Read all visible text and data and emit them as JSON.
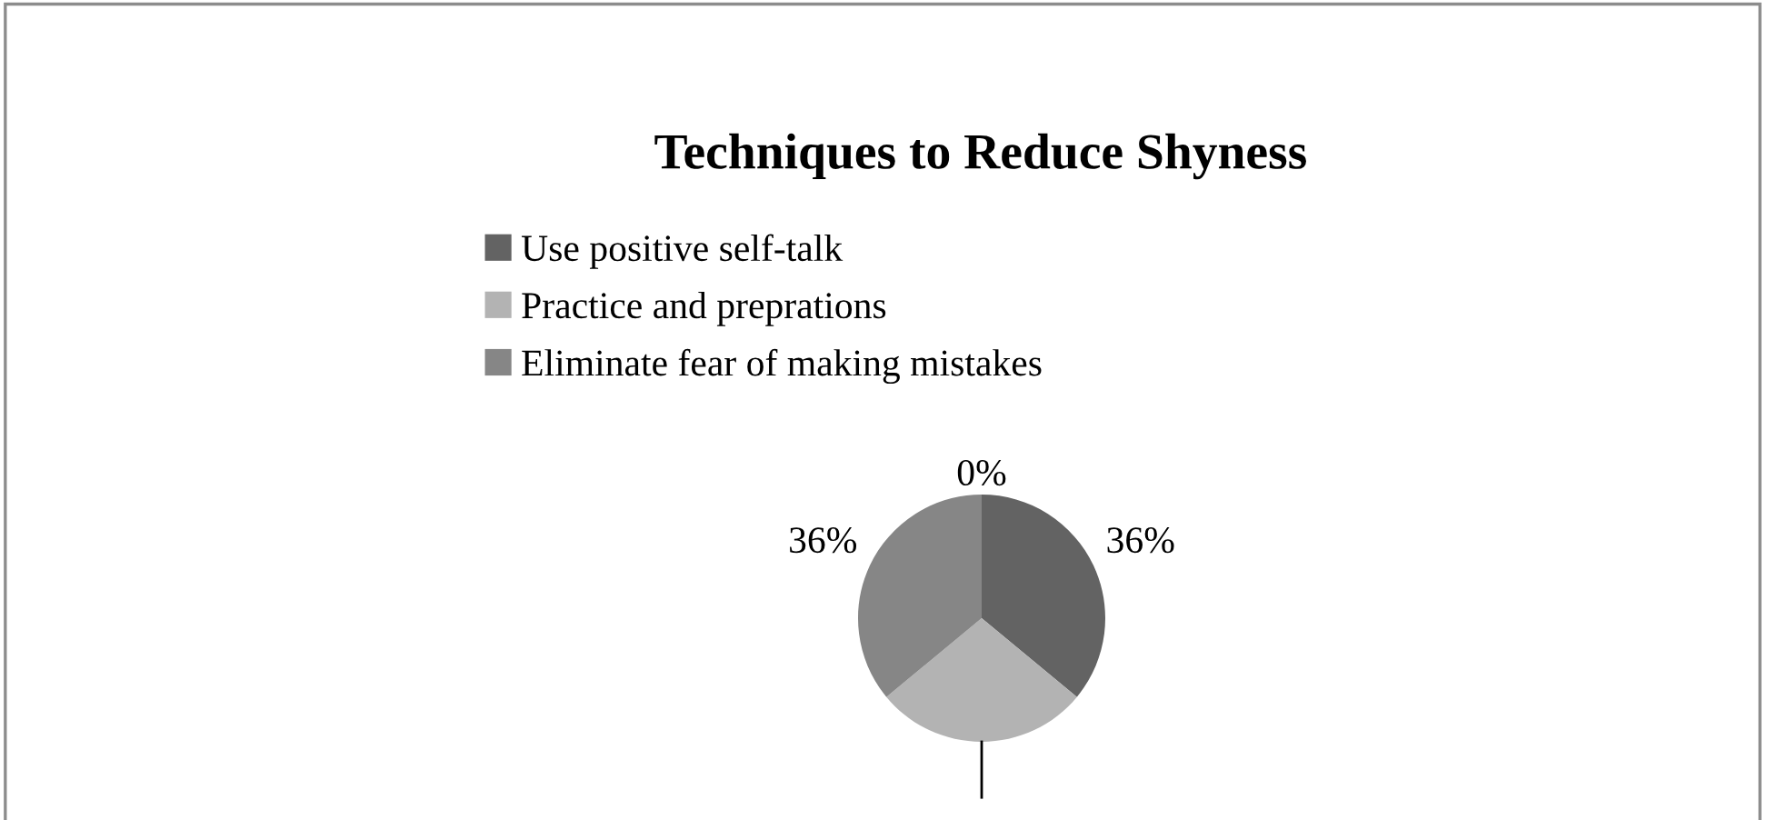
{
  "chart_data": {
    "type": "pie",
    "title": "Techniques to Reduce Shyness",
    "categories": [
      "Use positive self-talk",
      "Practice and preprations",
      "Eliminate fear of making mistakes",
      null
    ],
    "values": [
      36,
      28,
      36,
      0
    ],
    "colors": [
      "#636363",
      "#b3b3b3",
      "#868686",
      "#4f4f4f"
    ],
    "value_labels": [
      "36%",
      null,
      "36%",
      "0%"
    ],
    "legend": "top"
  }
}
